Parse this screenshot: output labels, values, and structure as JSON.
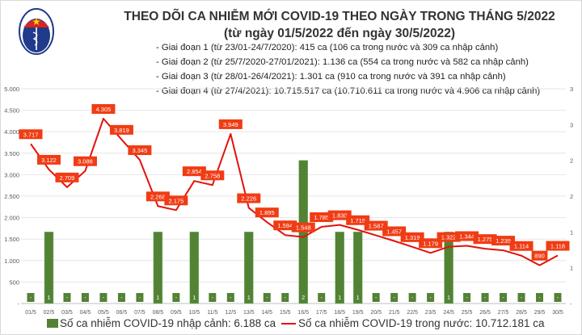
{
  "header": {
    "logo_text": "BỘ Y TẾ - MINISTRY OF HEALTH",
    "title": "THEO DÕI CA NHIỄM MỚI COVID-19 THEO NGÀY TRONG THÁNG 5/2022",
    "subtitle": "(từ ngày 01/5/2022 đến ngày 30/5/2022)",
    "phases": [
      "- Giai đoạn 1 (từ 23/01-24/7/2020): 415 ca (106 ca trong nước và 309 ca nhập cảnh)",
      "- Giai đoạn 2 (từ 25/7/2020-27/01/2021): 1.136 ca (554 ca trong nước và 582 ca nhập cảnh)",
      "- Giai đoạn 3 (từ 28/01-26/4/2021): 1.301 ca (910 ca trong nước và 391 ca nhập cảnh)",
      "- Giai đoạn 4 (từ 27/4/2021): 10.715.517 ca (10.710.611 ca trong nước và 4.906 ca nhập cảnh)"
    ]
  },
  "chart_data": {
    "type": "bar+line",
    "categories": [
      "01/5",
      "02/5",
      "03/5",
      "04/5",
      "05/5",
      "06/5",
      "07/5",
      "08/5",
      "09/5",
      "10/5",
      "11/5",
      "12/5",
      "13/5",
      "14/5",
      "15/5",
      "16/5",
      "17/5",
      "18/5",
      "19/5",
      "20/5",
      "21/5",
      "22/5",
      "23/5",
      "24/5",
      "25/5",
      "26/5",
      "27/5",
      "28/5",
      "29/5",
      "30/5"
    ],
    "series": [
      {
        "name": "Số ca nhiễm COVID-19 nhập cảnh: 6.188 ca",
        "type": "bar",
        "axis": "right",
        "color": "#548235",
        "values": [
          0,
          1,
          0,
          0,
          0,
          0,
          0,
          1,
          0,
          1,
          0,
          0,
          1,
          0,
          0,
          2,
          0,
          1,
          1,
          0,
          0,
          0,
          0,
          1,
          0,
          0,
          0,
          0,
          0,
          0
        ]
      },
      {
        "name": "Số ca nhiễm COVID-19 trong nước: 10.712.181 ca",
        "type": "line",
        "axis": "left",
        "color": "#e3120b",
        "values": [
          3717,
          3122,
          2709,
          3088,
          4305,
          3819,
          3345,
          2268,
          2175,
          2854,
          2758,
          3949,
          2226,
          1895,
          1594,
          1548,
          1785,
          1830,
          1715,
          1587,
          1457,
          1319,
          1179,
          1322,
          1344,
          1275,
          1239,
          1114,
          890,
          1118
        ]
      }
    ],
    "left_axis": {
      "ylim": [
        0,
        5000
      ],
      "ticks": [
        "-",
        "500",
        "1.000",
        "1.500",
        "2.000",
        "2.500",
        "3.000",
        "3.500",
        "4.000",
        "4.500",
        "5.000"
      ]
    },
    "right_axis": {
      "ylim": [
        0,
        3
      ],
      "ticks": [
        "-",
        "1",
        "1",
        "2",
        "2",
        "3",
        "3"
      ]
    },
    "grid": true,
    "legend_position": "bottom"
  }
}
